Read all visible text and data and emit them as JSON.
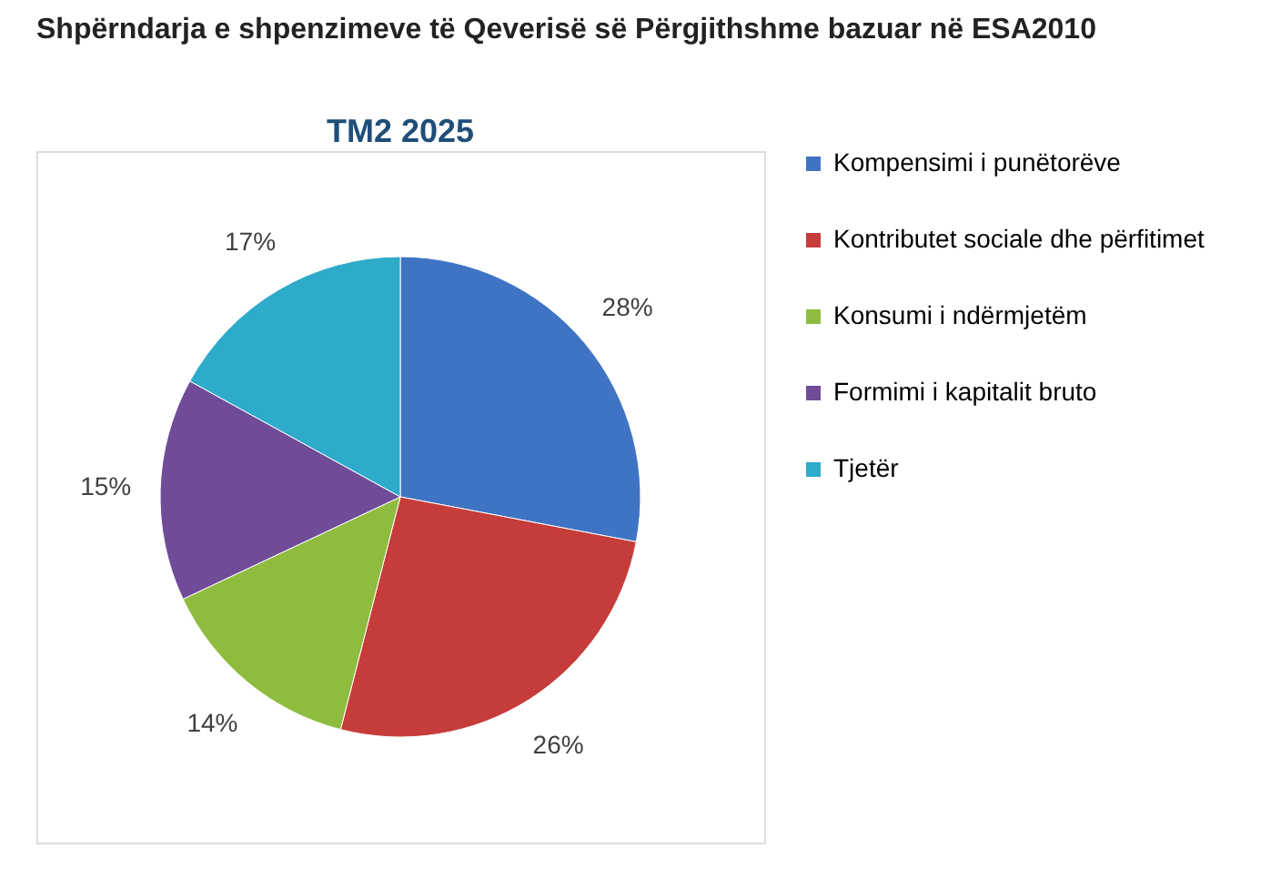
{
  "chart_data": {
    "type": "pie",
    "title": "Shpërndarja e shpenzimeve të Qeverisë së Përgjithshme bazuar në ESA2010",
    "subtitle": "TM2 2025",
    "categories": [
      "Kompensimi i punëtorëve",
      "Kontributet sociale dhe përfitimet",
      "Konsumi i ndërmjetëm",
      "Formimi i kapitalit bruto",
      "Tjetër"
    ],
    "values": [
      28,
      26,
      14,
      15,
      17
    ],
    "colors": [
      "#3f74c4",
      "#c53c3a",
      "#8fbc3f",
      "#6f4b98",
      "#2eaacb"
    ],
    "value_labels": [
      "28%",
      "26%",
      "14%",
      "15%",
      "17%"
    ],
    "legend": "right"
  }
}
